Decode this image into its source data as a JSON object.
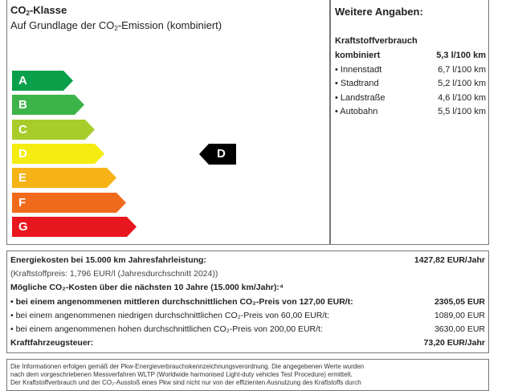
{
  "co2_class": {
    "title_prefix": "CO",
    "title_sub": "2",
    "title_suffix": "-Klasse",
    "subtitle_prefix": "Auf Grundlage der CO",
    "subtitle_sub": "2",
    "subtitle_suffix": "-Emission (kombiniert)",
    "classes": [
      {
        "label": "A",
        "color": "#0aa04a"
      },
      {
        "label": "B",
        "color": "#3cb44a"
      },
      {
        "label": "C",
        "color": "#a8cc2a"
      },
      {
        "label": "D",
        "color": "#f4ec10"
      },
      {
        "label": "E",
        "color": "#f7b216"
      },
      {
        "label": "F",
        "color": "#f06a1c"
      },
      {
        "label": "G",
        "color": "#e8161e"
      }
    ],
    "current_class": "D"
  },
  "further": {
    "title": "Weitere Angaben:",
    "section": "Kraftstoffverbrauch",
    "rows": [
      {
        "label": "kombiniert",
        "value": "5,3 l/100 km",
        "bold": true
      },
      {
        "label": "• Innenstadt",
        "value": "6,7 l/100 km"
      },
      {
        "label": "• Stadtrand",
        "value": "5,2 l/100 km"
      },
      {
        "label": "• Landstraße",
        "value": "4,6 l/100 km"
      },
      {
        "label": "• Autobahn",
        "value": "5,5 l/100 km"
      }
    ]
  },
  "costs": {
    "energy_label": "Energiekosten bei 15.000 km Jahresfahrleistung:",
    "energy_value": "1427,82 EUR/Jahr",
    "fuel_price": "(Kraftstoffpreis: 1,796 EUR/l (Jahresdurchschnitt 2024))",
    "co2_heading": "Mögliche CO₂-Kosten über die nächsten 10 Jahre (15.000 km/Jahr):⁴",
    "mid_label": "• bei einem angenommenen mittleren durchschnittlichen CO₂-Preis von 127,00 EUR/t:",
    "mid_value": "2305,05 EUR",
    "low_label": "• bei einem angenommenen niedrigen durchschnittlichen CO₂-Preis von 60,00 EUR/t:",
    "low_value": "1089,00 EUR",
    "high_label": "• bei einem angenommenen hohen durchschnittlichen CO₂-Preis von 200,00 EUR/t:",
    "high_value": "3630,00 EUR",
    "tax_label": "Kraftfahrzeugsteuer:",
    "tax_value": "73,20 EUR/Jahr"
  },
  "info": {
    "line1": "Die Informationen erfolgen gemäß der Pkw-Energieverbrauchskennzeichnungsverordnung. Die angegebenen Werte wurden",
    "line2": "nach dem vorgeschriebenen Messverfahren WLTP (Worldwide harmonised Light-duty vehicles Test Procedure) ermittelt.",
    "line3": "Der Kraftstoffverbrauch und der CO₂-Ausstoß eines Pkw sind nicht nur von der effizienten Ausnutzung des Kraftstoffs durch"
  }
}
